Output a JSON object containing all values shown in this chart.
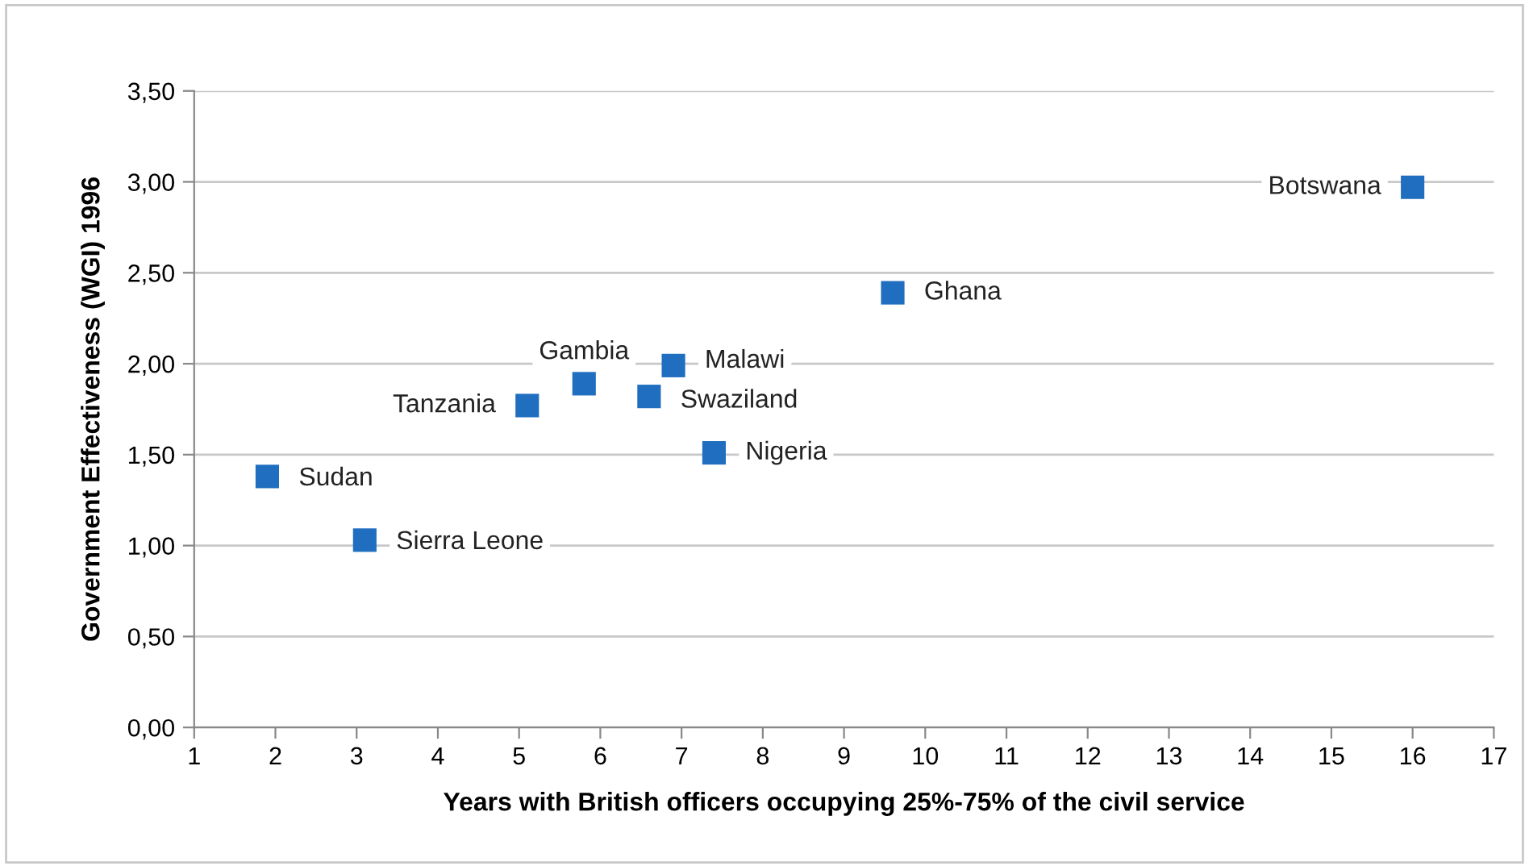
{
  "chart_data": {
    "type": "scatter",
    "xlabel": "Years with British officers occupying 25%-75% of the civil service",
    "ylabel": "Government Effectiveness (WGI) 1996",
    "series": [
      {
        "color": "#1f6ebf",
        "x": [
          1.9,
          3.1,
          5.1,
          5.8,
          6.6,
          6.9,
          7.4,
          9.6,
          16
        ],
        "values": [
          1.38,
          1.03,
          1.77,
          1.89,
          1.82,
          1.99,
          1.51,
          2.39,
          2.97
        ]
      }
    ],
    "annotations": [
      {
        "text": "Sudan",
        "x": 1.9,
        "y": 1.38
      },
      {
        "text": "Sierra Leone",
        "x": 3.1,
        "y": 1.03
      },
      {
        "text": "Tanzania",
        "x": 5.1,
        "y": 1.77
      },
      {
        "text": "Gambia",
        "x": 5.8,
        "y": 1.89
      },
      {
        "text": "Swaziland",
        "x": 6.6,
        "y": 1.82
      },
      {
        "text": "Malawi",
        "x": 6.9,
        "y": 1.99
      },
      {
        "text": "Nigeria",
        "x": 7.4,
        "y": 1.51
      },
      {
        "text": "Ghana",
        "x": 9.6,
        "y": 2.39
      },
      {
        "text": "Botswana",
        "x": 16,
        "y": 2.97
      }
    ],
    "xlim": [
      1,
      17
    ],
    "xticks": [
      1,
      2,
      3,
      4,
      5,
      6,
      7,
      8,
      9,
      10,
      11,
      12,
      13,
      14,
      15,
      16,
      17
    ],
    "ylim": [
      0,
      3.5
    ],
    "yticks": [
      {
        "value": 0,
        "label": "0,00"
      },
      {
        "value": 0.5,
        "label": "0,50"
      },
      {
        "value": 1,
        "label": "1,00"
      },
      {
        "value": 1.5,
        "label": "1,50"
      },
      {
        "value": 2,
        "label": "2,00"
      },
      {
        "value": 2.5,
        "label": "2,50"
      },
      {
        "value": 3,
        "label": "3,00"
      },
      {
        "value": 3.5,
        "label": "3,50"
      }
    ],
    "grid": "y",
    "marker": "square",
    "legend": false
  }
}
